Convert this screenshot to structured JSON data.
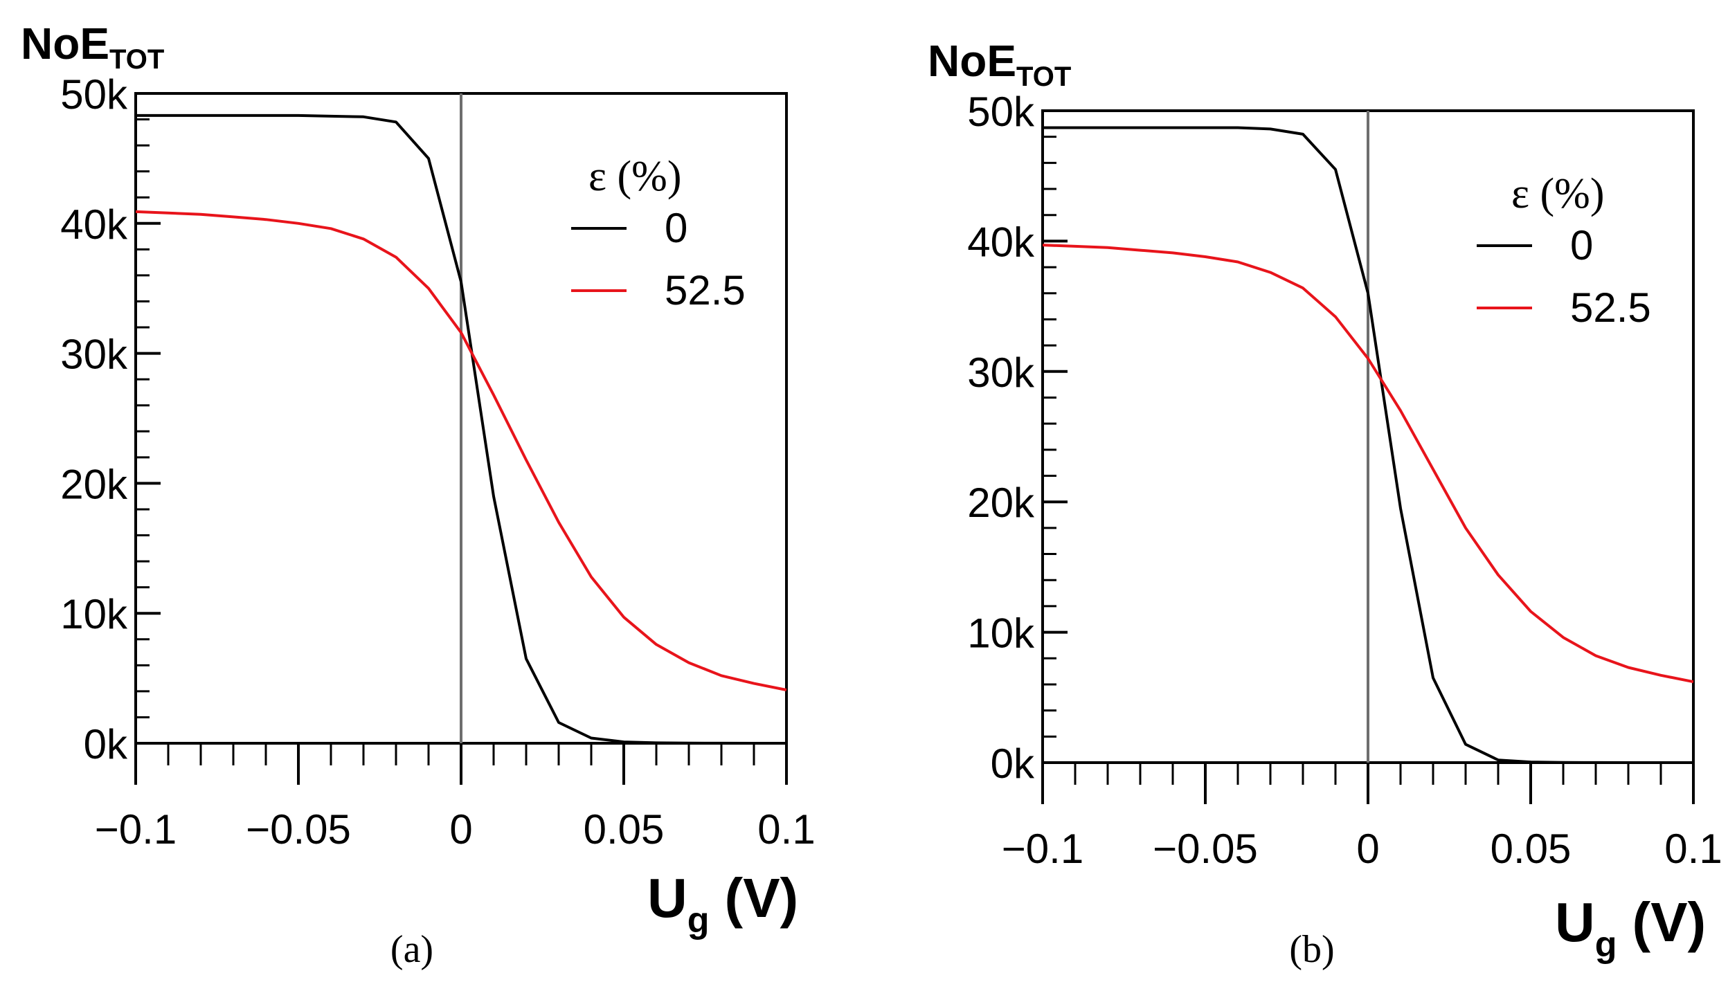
{
  "chart_data": [
    {
      "type": "line",
      "panel_label": "(a)",
      "xlabel": "U",
      "xlabel_sub": "g",
      "xlabel_unit": "(V)",
      "ylabel": "NoE",
      "ylabel_sub": "TOT",
      "xlim": [
        -0.1,
        0.1
      ],
      "ylim": [
        0,
        50000
      ],
      "xticks": [
        "−0.1",
        "−0.05",
        "0",
        "0.05",
        "0.1"
      ],
      "yticks": [
        "0k",
        "10k",
        "20k",
        "30k",
        "40k",
        "50k"
      ],
      "vertical_line_x": 0,
      "legend_title": "ε (%)",
      "legend_position": "top-right",
      "series": [
        {
          "name": "0",
          "color": "#000000",
          "x": [
            -0.1,
            -0.09,
            -0.08,
            -0.07,
            -0.06,
            -0.05,
            -0.04,
            -0.03,
            -0.02,
            -0.01,
            0,
            0.01,
            0.02,
            0.03,
            0.04,
            0.05,
            0.06,
            0.07,
            0.08,
            0.09,
            0.1
          ],
          "y": [
            48300,
            48300,
            48300,
            48300,
            48300,
            48300,
            48250,
            48200,
            47800,
            45000,
            35500,
            19000,
            6500,
            1600,
            400,
            100,
            30,
            10,
            5,
            2,
            0
          ]
        },
        {
          "name": "52.5",
          "color": "#e8141b",
          "x": [
            -0.1,
            -0.09,
            -0.08,
            -0.07,
            -0.06,
            -0.05,
            -0.04,
            -0.03,
            -0.02,
            -0.01,
            0,
            0.01,
            0.02,
            0.03,
            0.04,
            0.05,
            0.06,
            0.07,
            0.08,
            0.09,
            0.1
          ],
          "y": [
            40900,
            40800,
            40700,
            40500,
            40300,
            40000,
            39600,
            38800,
            37400,
            35000,
            31600,
            26800,
            21800,
            17000,
            12800,
            9700,
            7600,
            6200,
            5200,
            4600,
            4100
          ]
        }
      ]
    },
    {
      "type": "line",
      "panel_label": "(b)",
      "xlabel": "U",
      "xlabel_sub": "g",
      "xlabel_unit": "(V)",
      "ylabel": "NoE",
      "ylabel_sub": "TOT",
      "xlim": [
        -0.1,
        0.1
      ],
      "ylim": [
        0,
        50000
      ],
      "xticks": [
        "−0.1",
        "−0.05",
        "0",
        "0.05",
        "0.1"
      ],
      "yticks": [
        "0k",
        "10k",
        "20k",
        "30k",
        "40k",
        "50k"
      ],
      "vertical_line_x": 0,
      "legend_title": "ε (%)",
      "legend_position": "top-right",
      "series": [
        {
          "name": "0",
          "color": "#000000",
          "x": [
            -0.1,
            -0.09,
            -0.08,
            -0.07,
            -0.06,
            -0.05,
            -0.04,
            -0.03,
            -0.02,
            -0.01,
            0,
            0.01,
            0.02,
            0.03,
            0.04,
            0.05,
            0.06,
            0.07,
            0.08,
            0.09,
            0.1
          ],
          "y": [
            48700,
            48700,
            48700,
            48700,
            48700,
            48700,
            48700,
            48600,
            48200,
            45500,
            36000,
            19500,
            6500,
            1400,
            200,
            50,
            10,
            5,
            2,
            1,
            0
          ]
        },
        {
          "name": "52.5",
          "color": "#e8141b",
          "x": [
            -0.1,
            -0.09,
            -0.08,
            -0.07,
            -0.06,
            -0.05,
            -0.04,
            -0.03,
            -0.02,
            -0.01,
            0,
            0.01,
            0.02,
            0.03,
            0.04,
            0.05,
            0.06,
            0.07,
            0.08,
            0.09,
            0.1
          ],
          "y": [
            39700,
            39600,
            39500,
            39300,
            39100,
            38800,
            38400,
            37600,
            36400,
            34200,
            31000,
            27000,
            22500,
            18000,
            14400,
            11600,
            9600,
            8200,
            7300,
            6700,
            6200
          ]
        }
      ]
    }
  ]
}
